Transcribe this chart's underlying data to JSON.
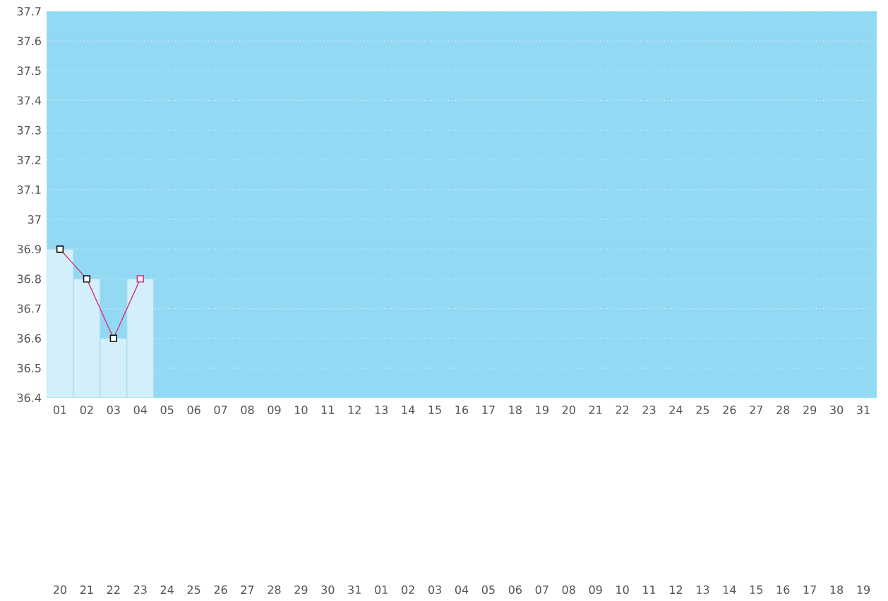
{
  "chart_data": {
    "type": "bar",
    "x": [
      1,
      2,
      3,
      4
    ],
    "series": [
      {
        "color": "#d2effb",
        "values": [
          36.9,
          36.8,
          36.6,
          36.8
        ]
      },
      {
        "type": "line",
        "color": "#d9307a",
        "colors": [
          "#111111",
          "#111111",
          "#111111",
          "#d9307a"
        ],
        "values": [
          36.9,
          36.8,
          36.6,
          36.8
        ]
      }
    ],
    "marker": "square",
    "line_style": "solid",
    "grid": "y",
    "xlim": [
      0.5,
      31.5
    ],
    "xticks": [
      {
        "value": 1,
        "label": "01"
      },
      {
        "value": 2,
        "label": "02"
      },
      {
        "value": 3,
        "label": "03"
      },
      {
        "value": 4,
        "label": "04"
      },
      {
        "value": 5,
        "label": "05"
      },
      {
        "value": 6,
        "label": "06"
      },
      {
        "value": 7,
        "label": "07"
      },
      {
        "value": 8,
        "label": "08"
      },
      {
        "value": 9,
        "label": "09"
      },
      {
        "value": 10,
        "label": "10"
      },
      {
        "value": 11,
        "label": "11"
      },
      {
        "value": 12,
        "label": "12"
      },
      {
        "value": 13,
        "label": "13"
      },
      {
        "value": 14,
        "label": "14"
      },
      {
        "value": 15,
        "label": "15"
      },
      {
        "value": 16,
        "label": "16"
      },
      {
        "value": 17,
        "label": "17"
      },
      {
        "value": 18,
        "label": "18"
      },
      {
        "value": 19,
        "label": "19"
      },
      {
        "value": 20,
        "label": "20"
      },
      {
        "value": 21,
        "label": "21"
      },
      {
        "value": 22,
        "label": "22"
      },
      {
        "value": 23,
        "label": "23"
      },
      {
        "value": 24,
        "label": "24"
      },
      {
        "value": 25,
        "label": "25"
      },
      {
        "value": 26,
        "label": "26"
      },
      {
        "value": 27,
        "label": "27"
      },
      {
        "value": 28,
        "label": "28"
      },
      {
        "value": 29,
        "label": "29"
      },
      {
        "value": 30,
        "label": "30"
      },
      {
        "value": 31,
        "label": "31"
      }
    ],
    "ylim": [
      36.4,
      37.7
    ],
    "yticks": [
      36.4,
      36.5,
      36.6,
      36.7,
      36.8,
      36.9,
      37,
      37.1,
      37.2,
      37.3,
      37.4,
      37.5,
      37.6,
      37.7
    ],
    "annotations": [
      "20",
      "21",
      "22",
      "23",
      "24",
      "25",
      "26",
      "27",
      "28",
      "29",
      "30",
      "31",
      "01",
      "02",
      "03",
      "04",
      "05",
      "06",
      "07",
      "08",
      "09",
      "10",
      "11",
      "12",
      "13",
      "14",
      "15",
      "16",
      "17",
      "18",
      "19"
    ]
  }
}
